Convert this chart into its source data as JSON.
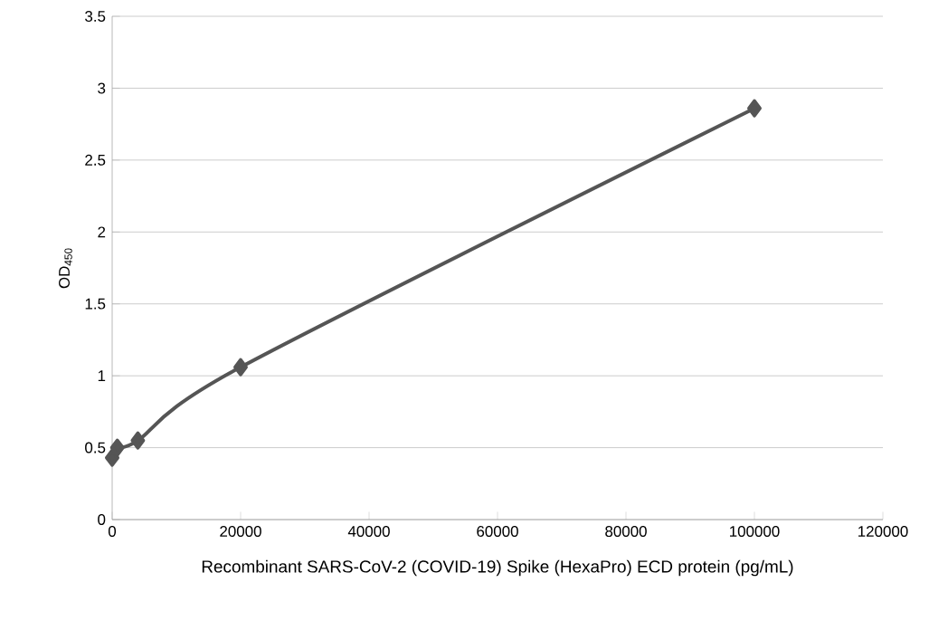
{
  "chart_data": {
    "type": "line",
    "xlabel": "Recombinant SARS-CoV-2 (COVID-19) Spike (HexaPro) ECD protein (pg/mL)",
    "ylabel": "OD$_{450}$",
    "x": [
      0,
      800,
      4000,
      20000,
      100000
    ],
    "values": [
      0.43,
      0.5,
      0.55,
      1.06,
      2.86
    ],
    "color": "#555555",
    "marker": "diamond",
    "line_style": "solid",
    "grid": "y",
    "xlim": [
      0,
      120000
    ],
    "xticks": [
      0,
      20000,
      40000,
      60000,
      80000,
      100000,
      120000
    ],
    "ylim": [
      0,
      3.5
    ],
    "yticks": [
      0,
      0.5,
      1,
      1.5,
      2,
      2.5,
      3,
      3.5
    ]
  }
}
